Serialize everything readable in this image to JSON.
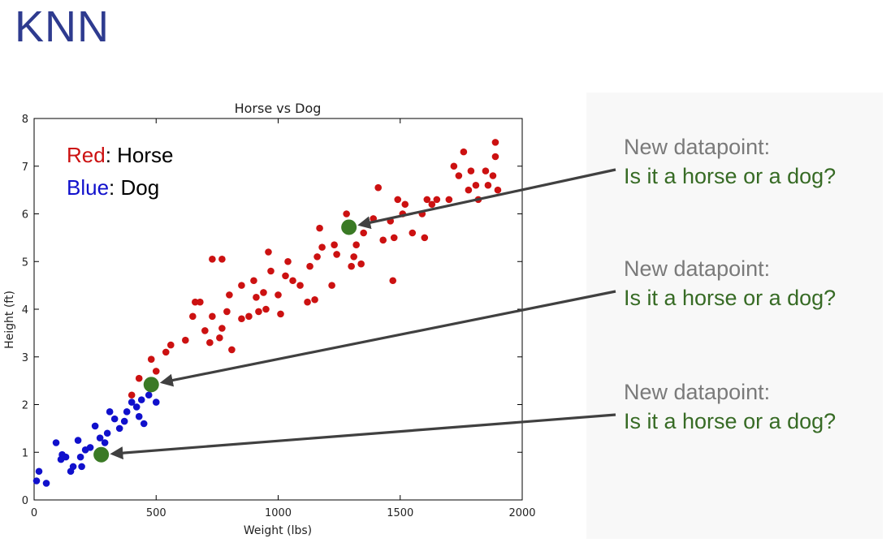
{
  "slide": {
    "title": "KNN"
  },
  "callouts": [
    {
      "line1": "New datapoint:",
      "line2": "Is it a horse or a dog?",
      "target": 0
    },
    {
      "line1": "New datapoint:",
      "line2": "Is it a horse or a dog?",
      "target": 1
    },
    {
      "line1": "New datapoint:",
      "line2": "Is it a horse or a dog?",
      "target": 2
    }
  ],
  "colors": {
    "horse": "#cc1111",
    "dog": "#1010cc",
    "new_point": "#3a7a25",
    "arrow": "#404040",
    "callout_gray": "#7a7a7a",
    "callout_green": "#376b25",
    "title_blue": "#2e3b8f"
  },
  "chart_data": {
    "type": "scatter",
    "title": "Horse vs Dog",
    "xlabel": "Weight (lbs)",
    "ylabel": "Height (ft)",
    "xlim": [
      0,
      2000
    ],
    "ylim": [
      0,
      8
    ],
    "xticks": [
      0,
      500,
      1000,
      1500,
      2000
    ],
    "yticks": [
      0,
      1,
      2,
      3,
      4,
      5,
      6,
      7,
      8
    ],
    "grid": false,
    "legend": [
      {
        "key": "Red",
        "label": ": Horse",
        "series": "horse"
      },
      {
        "key": "Blue",
        "label": ": Dog",
        "series": "dog"
      }
    ],
    "series": [
      {
        "id": "horse",
        "points": [
          [
            400,
            2.2
          ],
          [
            430,
            2.55
          ],
          [
            480,
            2.95
          ],
          [
            500,
            2.7
          ],
          [
            540,
            3.1
          ],
          [
            560,
            3.25
          ],
          [
            620,
            3.35
          ],
          [
            650,
            3.85
          ],
          [
            660,
            4.15
          ],
          [
            680,
            4.15
          ],
          [
            700,
            3.55
          ],
          [
            720,
            3.3
          ],
          [
            730,
            3.85
          ],
          [
            730,
            5.05
          ],
          [
            760,
            3.4
          ],
          [
            770,
            3.6
          ],
          [
            770,
            5.05
          ],
          [
            790,
            3.95
          ],
          [
            800,
            4.3
          ],
          [
            810,
            3.15
          ],
          [
            850,
            3.8
          ],
          [
            850,
            4.5
          ],
          [
            880,
            3.85
          ],
          [
            900,
            4.6
          ],
          [
            910,
            4.25
          ],
          [
            920,
            3.95
          ],
          [
            940,
            4.35
          ],
          [
            950,
            4.0
          ],
          [
            960,
            5.2
          ],
          [
            970,
            4.8
          ],
          [
            1000,
            4.3
          ],
          [
            1010,
            3.9
          ],
          [
            1030,
            4.7
          ],
          [
            1040,
            5.0
          ],
          [
            1060,
            4.6
          ],
          [
            1090,
            4.5
          ],
          [
            1120,
            4.15
          ],
          [
            1130,
            4.9
          ],
          [
            1150,
            4.2
          ],
          [
            1160,
            5.1
          ],
          [
            1170,
            5.7
          ],
          [
            1180,
            5.3
          ],
          [
            1220,
            4.5
          ],
          [
            1230,
            5.35
          ],
          [
            1240,
            5.15
          ],
          [
            1280,
            6.0
          ],
          [
            1300,
            4.9
          ],
          [
            1310,
            5.1
          ],
          [
            1320,
            5.35
          ],
          [
            1340,
            4.95
          ],
          [
            1350,
            5.6
          ],
          [
            1390,
            5.9
          ],
          [
            1410,
            6.55
          ],
          [
            1430,
            5.45
          ],
          [
            1460,
            5.85
          ],
          [
            1470,
            4.6
          ],
          [
            1475,
            5.5
          ],
          [
            1490,
            6.3
          ],
          [
            1510,
            6.0
          ],
          [
            1520,
            6.2
          ],
          [
            1550,
            5.6
          ],
          [
            1590,
            6.0
          ],
          [
            1600,
            5.5
          ],
          [
            1610,
            6.3
          ],
          [
            1630,
            6.2
          ],
          [
            1650,
            6.3
          ],
          [
            1700,
            6.3
          ],
          [
            1720,
            7.0
          ],
          [
            1740,
            6.8
          ],
          [
            1760,
            7.3
          ],
          [
            1780,
            6.5
          ],
          [
            1790,
            6.9
          ],
          [
            1810,
            6.6
          ],
          [
            1820,
            6.3
          ],
          [
            1850,
            6.9
          ],
          [
            1860,
            6.6
          ],
          [
            1880,
            6.8
          ],
          [
            1890,
            7.5
          ],
          [
            1890,
            7.2
          ],
          [
            1900,
            6.5
          ]
        ]
      },
      {
        "id": "dog",
        "points": [
          [
            10,
            0.4
          ],
          [
            20,
            0.6
          ],
          [
            50,
            0.35
          ],
          [
            90,
            1.2
          ],
          [
            110,
            0.85
          ],
          [
            115,
            0.95
          ],
          [
            130,
            0.9
          ],
          [
            150,
            0.6
          ],
          [
            160,
            0.7
          ],
          [
            180,
            1.25
          ],
          [
            190,
            0.9
          ],
          [
            195,
            0.7
          ],
          [
            210,
            1.05
          ],
          [
            230,
            1.1
          ],
          [
            250,
            1.55
          ],
          [
            270,
            1.3
          ],
          [
            290,
            1.2
          ],
          [
            300,
            1.4
          ],
          [
            310,
            1.85
          ],
          [
            330,
            1.7
          ],
          [
            350,
            1.5
          ],
          [
            370,
            1.65
          ],
          [
            380,
            1.85
          ],
          [
            400,
            2.05
          ],
          [
            420,
            1.95
          ],
          [
            430,
            1.75
          ],
          [
            440,
            2.1
          ],
          [
            450,
            1.6
          ],
          [
            470,
            2.2
          ],
          [
            500,
            2.05
          ]
        ]
      }
    ],
    "new_points": [
      [
        1290,
        5.72
      ],
      [
        480,
        2.42
      ],
      [
        275,
        0.95
      ]
    ]
  }
}
